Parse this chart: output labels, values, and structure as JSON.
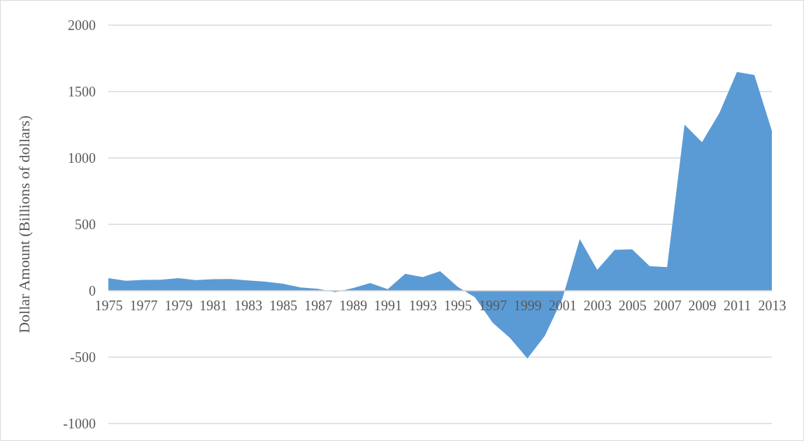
{
  "chart_data": {
    "type": "area",
    "ylabel": "Dollar Amount (Billions of dollars)",
    "categories": [
      "1975",
      null,
      "1977",
      null,
      "1979",
      null,
      "1981",
      null,
      "1983",
      null,
      "1985",
      null,
      "1987",
      null,
      "1989",
      null,
      "1991",
      null,
      "1993",
      null,
      "1995",
      null,
      "1997",
      null,
      "1999",
      null,
      "2001",
      null,
      "2003",
      null,
      "2005",
      null,
      "2007",
      null,
      "2009",
      null,
      "2011",
      null,
      "2013"
    ],
    "series": [
      {
        "color": "#5b9bd5",
        "values": [
          95,
          75,
          82,
          83,
          95,
          80,
          87,
          88,
          78,
          68,
          52,
          25,
          15,
          -10,
          20,
          58,
          12,
          127,
          102,
          148,
          30,
          -50,
          -240,
          -355,
          -510,
          -340,
          -60,
          390,
          158,
          308,
          312,
          185,
          178,
          1251,
          1119,
          1340,
          1647,
          1625,
          1205
        ]
      }
    ],
    "ylim": [
      -1000,
      2000
    ],
    "yticks": [
      -1000,
      -500,
      0,
      500,
      1000,
      1500,
      2000
    ],
    "grid": "y"
  }
}
